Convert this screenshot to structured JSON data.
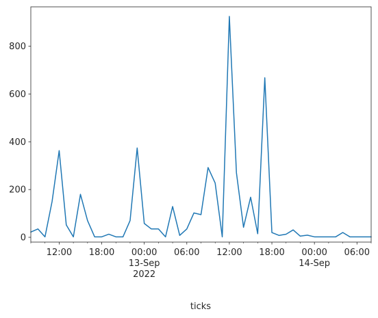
{
  "chart_data": {
    "type": "line",
    "title": "",
    "xlabel": "ticks",
    "ylabel": "",
    "x_start": "2022-09-12 08:00",
    "x_end": "2022-09-14 08:00",
    "x_step_hours": 1,
    "ylim": [
      -20,
      965
    ],
    "grid": false,
    "legend": "none",
    "series": [
      {
        "color": "#1f77b4",
        "values": [
          22,
          35,
          2,
          150,
          363,
          52,
          2,
          180,
          70,
          2,
          2,
          13,
          2,
          2,
          70,
          374,
          58,
          35,
          35,
          2,
          129,
          8,
          35,
          102,
          95,
          292,
          227,
          2,
          925,
          270,
          42,
          168,
          15,
          668,
          20,
          8,
          13,
          31,
          5,
          9,
          2,
          2,
          2,
          2,
          20,
          2,
          2,
          2,
          2
        ]
      }
    ],
    "y_ticks": [
      {
        "value": 0,
        "label": "0"
      },
      {
        "value": 200,
        "label": "200"
      },
      {
        "value": 400,
        "label": "400"
      },
      {
        "value": 600,
        "label": "600"
      },
      {
        "value": 800,
        "label": "800"
      }
    ],
    "x_major_ticks": [
      {
        "x": "2022-09-12 12:00",
        "label": "12:00",
        "sub": ""
      },
      {
        "x": "2022-09-12 18:00",
        "label": "18:00",
        "sub": ""
      },
      {
        "x": "2022-09-13 00:00",
        "label": "00:00",
        "sub": "13-Sep\n2022"
      },
      {
        "x": "2022-09-13 06:00",
        "label": "06:00",
        "sub": ""
      },
      {
        "x": "2022-09-13 12:00",
        "label": "12:00",
        "sub": ""
      },
      {
        "x": "2022-09-13 18:00",
        "label": "18:00",
        "sub": ""
      },
      {
        "x": "2022-09-14 00:00",
        "label": "00:00",
        "sub": "14-Sep"
      },
      {
        "x": "2022-09-14 06:00",
        "label": "06:00",
        "sub": ""
      }
    ]
  }
}
